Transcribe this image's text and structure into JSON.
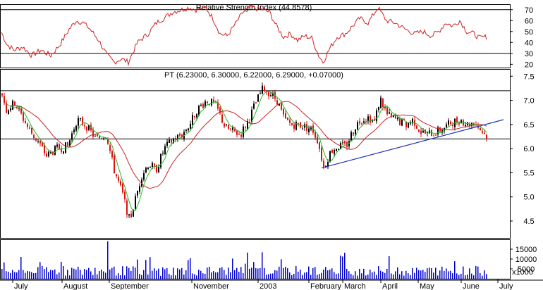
{
  "chart_data": {
    "type": "candlestick",
    "rsi_panel": {
      "title": "Relative Strength Index (44.8578)",
      "ylim": [
        17,
        75
      ],
      "yticks": [
        "70",
        "60",
        "50",
        "40",
        "30",
        "20"
      ],
      "reference_lines": [
        70,
        30
      ],
      "line_color": "#cc2222"
    },
    "price_panel": {
      "title": "PT (6.23000, 6.30000, 6.22000, 6.29000, +0.07000)",
      "ylim": [
        4.15,
        7.65
      ],
      "yticks": [
        "7.5",
        "7.0",
        "6.5",
        "6.0",
        "5.5",
        "5.0",
        "4.5"
      ],
      "horizontal_lines": [
        7.2,
        6.2
      ],
      "trendline": {
        "from": [
          "February",
          5.6
        ],
        "to": [
          "July",
          6.6
        ]
      },
      "up_color": "#000000",
      "down_color": "#dd1111",
      "ma_long_color": "#cc2222",
      "ma_short_color": "#22bb22",
      "trendline_color": "#2233bb"
    },
    "volume_panel": {
      "yticks": [
        "15000",
        "10000",
        "5000"
      ],
      "unit_label": "x1000",
      "bar_color": "#0000cc"
    },
    "x_axis": {
      "months": [
        "July",
        "August",
        "September",
        "November",
        "2003",
        "February",
        "March",
        "April",
        "May",
        "June",
        "July"
      ]
    },
    "price_path": [
      [
        0,
        7.25
      ],
      [
        8,
        6.8
      ],
      [
        20,
        6.95
      ],
      [
        40,
        6.4
      ],
      [
        55,
        6.1
      ],
      [
        65,
        5.85
      ],
      [
        80,
        6.0
      ],
      [
        95,
        6.05
      ],
      [
        108,
        6.6
      ],
      [
        120,
        6.5
      ],
      [
        135,
        6.2
      ],
      [
        150,
        6.3
      ],
      [
        160,
        5.6
      ],
      [
        172,
        5.1
      ],
      [
        183,
        4.5
      ],
      [
        190,
        4.9
      ],
      [
        200,
        5.45
      ],
      [
        210,
        5.7
      ],
      [
        220,
        5.55
      ],
      [
        232,
        6.0
      ],
      [
        245,
        6.2
      ],
      [
        258,
        6.3
      ],
      [
        268,
        6.5
      ],
      [
        278,
        6.8
      ],
      [
        292,
        7.0
      ],
      [
        305,
        6.9
      ],
      [
        318,
        6.45
      ],
      [
        330,
        6.35
      ],
      [
        340,
        6.3
      ],
      [
        352,
        6.6
      ],
      [
        360,
        6.9
      ],
      [
        372,
        7.25
      ],
      [
        382,
        7.15
      ],
      [
        392,
        7.0
      ],
      [
        402,
        6.6
      ],
      [
        412,
        6.5
      ],
      [
        422,
        6.5
      ],
      [
        432,
        6.45
      ],
      [
        442,
        6.4
      ],
      [
        450,
        6.15
      ],
      [
        458,
        5.6
      ],
      [
        468,
        5.95
      ],
      [
        478,
        6.05
      ],
      [
        490,
        6.05
      ],
      [
        500,
        6.4
      ],
      [
        510,
        6.6
      ],
      [
        522,
        6.65
      ],
      [
        530,
        6.55
      ],
      [
        538,
        7.05
      ],
      [
        548,
        6.7
      ],
      [
        560,
        6.6
      ],
      [
        575,
        6.5
      ],
      [
        585,
        6.6
      ],
      [
        595,
        6.35
      ],
      [
        605,
        6.3
      ],
      [
        618,
        6.35
      ],
      [
        630,
        6.45
      ],
      [
        640,
        6.55
      ],
      [
        652,
        6.6
      ],
      [
        662,
        6.5
      ],
      [
        672,
        6.55
      ],
      [
        680,
        6.4
      ],
      [
        688,
        6.27
      ]
    ],
    "rsi_path": [
      [
        0,
        52
      ],
      [
        10,
        38
      ],
      [
        20,
        33
      ],
      [
        32,
        36
      ],
      [
        45,
        28
      ],
      [
        58,
        33
      ],
      [
        72,
        28
      ],
      [
        85,
        38
      ],
      [
        98,
        52
      ],
      [
        108,
        60
      ],
      [
        118,
        58
      ],
      [
        128,
        52
      ],
      [
        140,
        42
      ],
      [
        152,
        28
      ],
      [
        162,
        22
      ],
      [
        172,
        25
      ],
      [
        182,
        22
      ],
      [
        195,
        40
      ],
      [
        210,
        48
      ],
      [
        222,
        58
      ],
      [
        232,
        62
      ],
      [
        245,
        68
      ],
      [
        258,
        70
      ],
      [
        268,
        72
      ],
      [
        278,
        70
      ],
      [
        292,
        72
      ],
      [
        302,
        62
      ],
      [
        312,
        48
      ],
      [
        322,
        46
      ],
      [
        335,
        58
      ],
      [
        345,
        68
      ],
      [
        355,
        72
      ],
      [
        372,
        70
      ],
      [
        382,
        68
      ],
      [
        392,
        55
      ],
      [
        402,
        45
      ],
      [
        412,
        48
      ],
      [
        422,
        42
      ],
      [
        432,
        46
      ],
      [
        442,
        44
      ],
      [
        452,
        28
      ],
      [
        458,
        22
      ],
      [
        468,
        35
      ],
      [
        478,
        45
      ],
      [
        490,
        48
      ],
      [
        500,
        55
      ],
      [
        510,
        62
      ],
      [
        522,
        58
      ],
      [
        536,
        72
      ],
      [
        548,
        60
      ],
      [
        560,
        58
      ],
      [
        575,
        52
      ],
      [
        588,
        48
      ],
      [
        600,
        50
      ],
      [
        612,
        46
      ],
      [
        622,
        50
      ],
      [
        632,
        58
      ],
      [
        642,
        55
      ],
      [
        652,
        60
      ],
      [
        662,
        50
      ],
      [
        672,
        48
      ],
      [
        680,
        44
      ],
      [
        688,
        45
      ]
    ]
  }
}
